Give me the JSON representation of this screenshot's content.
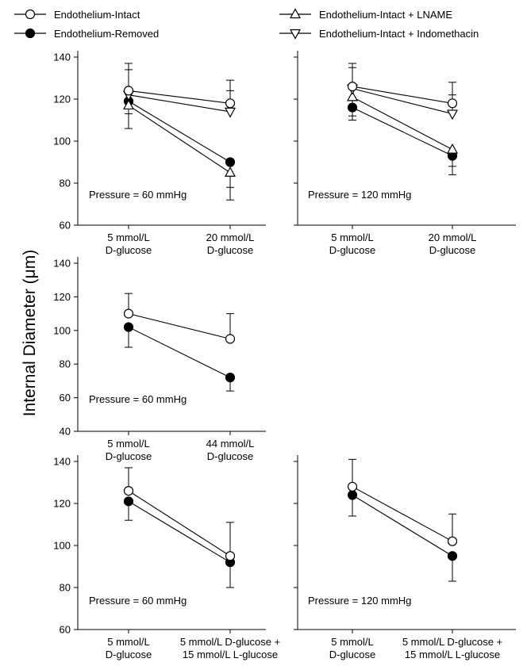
{
  "legend": {
    "items": [
      {
        "label": "Endothelium-Intact",
        "marker": "circle-open"
      },
      {
        "label": "Endothelium-Removed",
        "marker": "circle-filled"
      },
      {
        "label": "Endothelium-Intact + LNAME",
        "marker": "triangle-up-open"
      },
      {
        "label": "Endothelium-Intact + Indomethacin",
        "marker": "triangle-down-open"
      }
    ]
  },
  "ylabel": "Internal Diameter (μm)",
  "colors": {
    "ink": "#000000",
    "background": "#ffffff"
  },
  "chart_data": [
    {
      "type": "line",
      "annotation": "Pressure = 60 mmHg",
      "categories": [
        [
          "5 mmol/L",
          "D-glucose"
        ],
        [
          "20 mmol/L",
          "D-glucose"
        ]
      ],
      "ylim": [
        60,
        140
      ],
      "yticks": [
        60,
        80,
        100,
        120,
        140
      ],
      "series": [
        {
          "name": "Endothelium-Intact",
          "marker": "circle-open",
          "values": [
            124,
            118
          ],
          "err": [
            13,
            11
          ]
        },
        {
          "name": "Endothelium-Removed",
          "marker": "circle-filled",
          "values": [
            119,
            90
          ],
          "err": [
            6,
            12
          ]
        },
        {
          "name": "Endothelium-Intact + LNAME",
          "marker": "triangle-up-open",
          "values": [
            117,
            85
          ],
          "err": [
            11,
            13
          ]
        },
        {
          "name": "Endothelium-Intact + Indomethacin",
          "marker": "triangle-down-open",
          "values": [
            122,
            114
          ],
          "err": [
            12,
            10
          ]
        }
      ]
    },
    {
      "type": "line",
      "annotation": "Pressure = 120 mmHg",
      "categories": [
        [
          "5 mmol/L",
          "D-glucose"
        ],
        [
          "20 mmol/L",
          "D-glucose"
        ]
      ],
      "ylim": [
        60,
        140
      ],
      "yticks": [],
      "series": [
        {
          "name": "Endothelium-Intact",
          "marker": "circle-open",
          "values": [
            126,
            118
          ],
          "err": [
            11,
            10
          ]
        },
        {
          "name": "Endothelium-Removed",
          "marker": "circle-filled",
          "values": [
            116,
            93
          ],
          "err": [
            6,
            9
          ]
        },
        {
          "name": "Endothelium-Intact + LNAME",
          "marker": "triangle-up-open",
          "values": [
            121,
            96
          ],
          "err": [
            9,
            8
          ]
        },
        {
          "name": "Endothelium-Intact + Indomethacin",
          "marker": "triangle-down-open",
          "values": [
            125,
            113
          ],
          "err": [
            10,
            9
          ]
        }
      ]
    },
    {
      "type": "line",
      "annotation": "Pressure = 60 mmHg",
      "categories": [
        [
          "5 mmol/L",
          "D-glucose"
        ],
        [
          "44 mmol/L",
          "D-glucose"
        ]
      ],
      "ylim": [
        40,
        140
      ],
      "yticks": [
        40,
        60,
        80,
        100,
        120,
        140
      ],
      "series": [
        {
          "name": "Endothelium-Intact",
          "marker": "circle-open",
          "values": [
            110,
            95
          ],
          "err": [
            12,
            15
          ]
        },
        {
          "name": "Endothelium-Removed",
          "marker": "circle-filled",
          "values": [
            102,
            72
          ],
          "err": [
            12,
            8
          ]
        }
      ]
    },
    {
      "type": "line",
      "annotation": "Pressure = 60 mmHg",
      "categories": [
        [
          "5 mmol/L",
          "D-glucose"
        ],
        [
          "5 mmol/L D-glucose +",
          "15 mmol/L L-glucose"
        ]
      ],
      "ylim": [
        60,
        140
      ],
      "yticks": [
        60,
        80,
        100,
        120,
        140
      ],
      "series": [
        {
          "name": "Endothelium-Intact",
          "marker": "circle-open",
          "values": [
            126,
            95
          ],
          "err": [
            11,
            16
          ]
        },
        {
          "name": "Endothelium-Removed",
          "marker": "circle-filled",
          "values": [
            121,
            92
          ],
          "err": [
            9,
            12
          ]
        }
      ]
    },
    {
      "type": "line",
      "annotation": "Pressure = 120 mmHg",
      "categories": [
        [
          "5 mmol/L",
          "D-glucose"
        ],
        [
          "5 mmol/L D-glucose +",
          "15 mmol/L L-glucose"
        ]
      ],
      "ylim": [
        60,
        140
      ],
      "yticks": [],
      "series": [
        {
          "name": "Endothelium-Intact",
          "marker": "circle-open",
          "values": [
            128,
            102
          ],
          "err": [
            13,
            13
          ]
        },
        {
          "name": "Endothelium-Removed",
          "marker": "circle-filled",
          "values": [
            124,
            95
          ],
          "err": [
            10,
            12
          ]
        }
      ]
    }
  ]
}
